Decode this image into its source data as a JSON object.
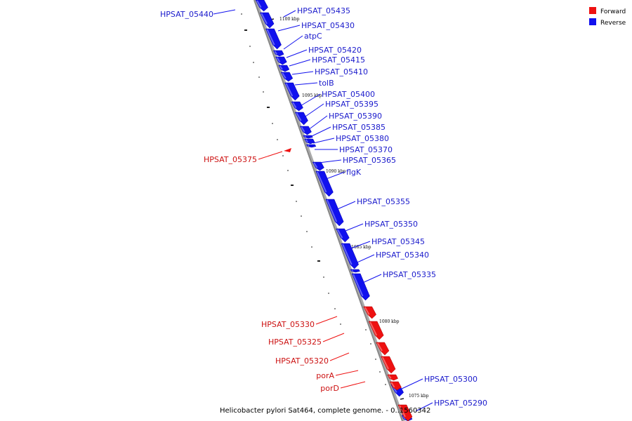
{
  "legend": [
    {
      "label": "Forward",
      "color": "#ee1111"
    },
    {
      "label": "Reverse",
      "color": "#1111ee"
    }
  ],
  "caption": "Helicobacter pylori Sat464, complete genome. - 0..1560342",
  "colors": {
    "forward": "#ee1111",
    "reverse": "#1111ee",
    "backbone": "#888888"
  },
  "kbp_ticks": [
    "1100 kbp",
    "1095 kbp",
    "1090 kbp",
    "1085 kbp",
    "1080 kbp",
    "1075 kbp"
  ],
  "genes_reverse": [
    "HPSAT_05440",
    "HPSAT_05435",
    "HPSAT_05430",
    "atpC",
    "HPSAT_05420",
    "HPSAT_05415",
    "HPSAT_05410",
    "tolB",
    "HPSAT_05400",
    "HPSAT_05395",
    "HPSAT_05390",
    "HPSAT_05385",
    "HPSAT_05380",
    "HPSAT_05370",
    "HPSAT_05365",
    "flgK",
    "HPSAT_05355",
    "HPSAT_05350",
    "HPSAT_05345",
    "HPSAT_05340",
    "HPSAT_05335",
    "HPSAT_05300",
    "HPSAT_05290"
  ],
  "genes_forward": [
    "HPSAT_05375",
    "HPSAT_05330",
    "HPSAT_05325",
    "HPSAT_05320",
    "porA",
    "porD"
  ]
}
